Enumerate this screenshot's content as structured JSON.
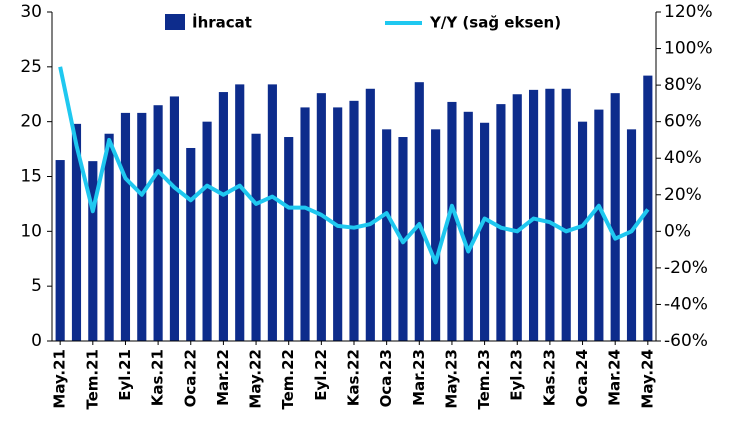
{
  "chart_data": {
    "type": "bar_line",
    "categories": [
      "May.21",
      null,
      "Tem.21",
      null,
      "Eyl.21",
      null,
      "Kas.21",
      null,
      "Oca.22",
      null,
      "Mar.22",
      null,
      "May.22",
      null,
      "Tem.22",
      null,
      "Eyl.22",
      null,
      "Kas.22",
      null,
      "Oca.23",
      null,
      "Mar.23",
      null,
      "May.23",
      null,
      "Tem.23",
      null,
      "Eyl.23",
      null,
      "Kas.23",
      null,
      "Oca.24",
      null,
      "Mar.24",
      null,
      "May.24"
    ],
    "series": [
      {
        "name": "İhracat",
        "type": "bar",
        "color": "#0d2c8c",
        "values": [
          16.5,
          19.8,
          16.4,
          18.9,
          20.8,
          20.8,
          21.5,
          22.3,
          17.6,
          20.0,
          22.7,
          23.4,
          18.9,
          23.4,
          18.6,
          21.3,
          22.6,
          21.3,
          21.9,
          23.0,
          19.3,
          18.6,
          23.6,
          19.3,
          21.8,
          20.9,
          19.9,
          21.6,
          22.5,
          22.9,
          23.0,
          23.0,
          20.0,
          21.1,
          22.6,
          19.3,
          24.2
        ]
      },
      {
        "name": "Y/Y (sağ eksen)",
        "type": "line",
        "axis": "y2",
        "color": "#1fc8f0",
        "values": [
          90,
          47,
          11,
          50,
          29,
          20,
          33,
          24,
          17,
          25,
          20,
          25,
          15,
          19,
          13,
          13,
          9,
          3,
          2,
          4,
          10,
          -6,
          4,
          -17,
          14,
          -11,
          7,
          2,
          0,
          7,
          5,
          0,
          3,
          14,
          -4,
          0,
          12
        ]
      }
    ],
    "ylim": [
      0,
      30
    ],
    "yticks": [
      0,
      5,
      10,
      15,
      20,
      25,
      30
    ],
    "y2lim": [
      -60,
      120
    ],
    "y2ticks": [
      {
        "value": -60,
        "label": "-60%"
      },
      {
        "value": -40,
        "label": "-40%"
      },
      {
        "value": -20,
        "label": "-20%"
      },
      {
        "value": 0,
        "label": "0%"
      },
      {
        "value": 20,
        "label": "20%"
      },
      {
        "value": 40,
        "label": "40%"
      },
      {
        "value": 60,
        "label": "60%"
      },
      {
        "value": 80,
        "label": "80%"
      },
      {
        "value": 100,
        "label": "100%"
      },
      {
        "value": 120,
        "label": "120%"
      }
    ],
    "grid": false
  }
}
